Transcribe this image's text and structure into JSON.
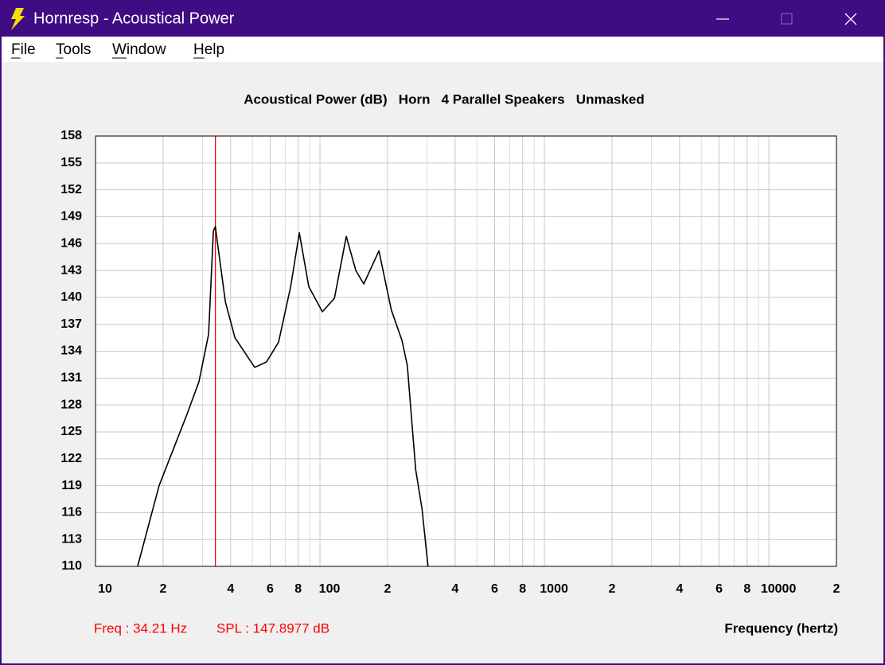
{
  "window": {
    "title": "Hornresp - Acoustical Power",
    "menu": [
      "File",
      "Tools",
      "Window",
      "Help"
    ]
  },
  "chart_data": {
    "type": "line",
    "title": "Acoustical Power (dB)   Horn   4 Parallel Speakers   Unmasked",
    "x_label": "Frequency (hertz)",
    "log_x": true,
    "grid": true,
    "color": "#000000",
    "xlim": [
      10,
      20000
    ],
    "xticks": [
      10,
      {
        "value": 20,
        "label": "2"
      },
      {
        "value": 40,
        "label": "4"
      },
      {
        "value": 60,
        "label": "6"
      },
      {
        "value": 80,
        "label": "8"
      },
      100,
      {
        "value": 200,
        "label": "2"
      },
      {
        "value": 400,
        "label": "4"
      },
      {
        "value": 600,
        "label": "6"
      },
      {
        "value": 800,
        "label": "8"
      },
      1000,
      {
        "value": 2000,
        "label": "2"
      },
      {
        "value": 4000,
        "label": "4"
      },
      {
        "value": 6000,
        "label": "6"
      },
      {
        "value": 8000,
        "label": "8"
      },
      10000,
      {
        "value": 20000,
        "label": "2"
      }
    ],
    "x_minor_ticks": [
      30,
      50,
      70,
      90,
      300,
      500,
      700,
      900,
      3000,
      5000,
      7000,
      9000
    ],
    "ylim": [
      110,
      158
    ],
    "yticks": [
      110,
      113,
      116,
      119,
      122,
      125,
      128,
      131,
      134,
      137,
      140,
      143,
      146,
      149,
      152,
      155,
      158
    ],
    "x": [
      15.4,
      19.2,
      25.6,
      28.9,
      31.9,
      33.5,
      34.21,
      35.5,
      37.9,
      41.8,
      51.2,
      57.8,
      65.4,
      74,
      80.9,
      89.2,
      102.5,
      116,
      131,
      144.5,
      156.8,
      183,
      208,
      232,
      245,
      267,
      285,
      303
    ],
    "values": [
      110,
      119.0,
      127.0,
      130.6,
      135.9,
      147.4,
      147.9,
      144.8,
      139.5,
      135.5,
      132.2,
      132.8,
      135.0,
      141.2,
      147.2,
      141.2,
      138.4,
      139.9,
      146.8,
      143.0,
      141.5,
      145.2,
      138.6,
      135.2,
      132.4,
      120.8,
      116.4,
      110
    ],
    "cursor": {
      "x": 34.21,
      "color": "#ff0000"
    },
    "freq_label": "Freq : 34.21 Hz",
    "spl_label": "SPL : 147.8977 dB"
  }
}
